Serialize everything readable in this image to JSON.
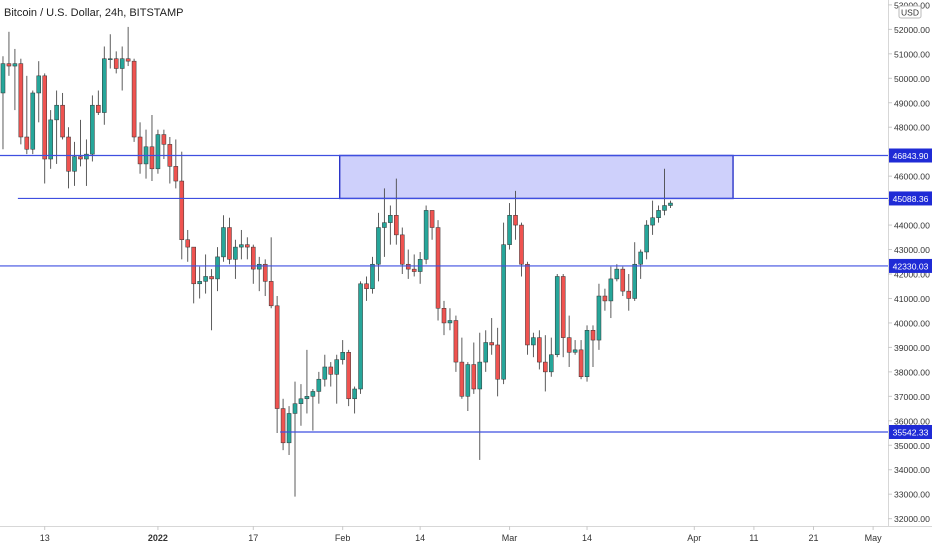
{
  "header": {
    "symbol_line": "Bitcoin / U.S. Dollar, 24h, BITSTAMP"
  },
  "price_scale": {
    "currency_badge": "USD"
  },
  "colors": {
    "up": "#26a69a",
    "down": "#ef5350",
    "candle_outline": "#333333",
    "hline": "#3f4fe0",
    "zone_fill": "#c5c8fa",
    "zone_border": "#2b35c8",
    "label_bg": "#1f2bd6",
    "axis_text": "#333333"
  },
  "chart_data": {
    "type": "candlestick",
    "x_axis_labels": [
      {
        "label": "13",
        "date": "2021-12-13"
      },
      {
        "label": "2022",
        "date": "2022-01-01"
      },
      {
        "label": "17",
        "date": "2022-01-17"
      },
      {
        "label": "Feb",
        "date": "2022-02-01"
      },
      {
        "label": "14",
        "date": "2022-02-14"
      },
      {
        "label": "Mar",
        "date": "2022-03-01"
      },
      {
        "label": "14",
        "date": "2022-03-14"
      },
      {
        "label": "Apr",
        "date": "2022-04-01"
      },
      {
        "label": "11",
        "date": "2022-04-11"
      },
      {
        "label": "21",
        "date": "2022-04-21"
      },
      {
        "label": "May",
        "date": "2022-05-01"
      }
    ],
    "y_axis_labels": [
      "53000.00",
      "52000.00",
      "51000.00",
      "50000.00",
      "49000.00",
      "48000.00",
      "47000.00",
      "46000.00",
      "45000.00",
      "44000.00",
      "43000.00",
      "42000.00",
      "41000.00",
      "40000.00",
      "39000.00",
      "38000.00",
      "37000.00",
      "36000.00",
      "35000.00",
      "34000.00",
      "33000.00",
      "32000.00"
    ],
    "ylim": [
      31700,
      53200
    ],
    "xlim": [
      "2021-12-06",
      "2022-05-04"
    ],
    "horizontal_lines": [
      {
        "price": 46843.9,
        "label": "46843.90",
        "from": "2021-12-06"
      },
      {
        "price": 45088.36,
        "label": "45088.36",
        "from": "2021-12-09"
      },
      {
        "price": 42330.03,
        "label": "42330.03",
        "from": "2021-12-06"
      },
      {
        "price": 35542.33,
        "label": "35542.33",
        "from": "2022-01-22"
      }
    ],
    "zone": {
      "from": "2022-02-01",
      "to": "2022-04-07",
      "low": 45088.36,
      "high": 46843.9
    },
    "candles": [
      {
        "date": "2021-12-06",
        "o": 49400,
        "h": 50900,
        "l": 47100,
        "c": 50600
      },
      {
        "date": "2021-12-07",
        "o": 50600,
        "h": 51900,
        "l": 50100,
        "c": 50500
      },
      {
        "date": "2021-12-08",
        "o": 50500,
        "h": 51200,
        "l": 48700,
        "c": 50600
      },
      {
        "date": "2021-12-09",
        "o": 50600,
        "h": 50800,
        "l": 47300,
        "c": 47600
      },
      {
        "date": "2021-12-10",
        "o": 47600,
        "h": 50100,
        "l": 46900,
        "c": 47100
      },
      {
        "date": "2021-12-11",
        "o": 47100,
        "h": 49500,
        "l": 46900,
        "c": 49400
      },
      {
        "date": "2021-12-12",
        "o": 49400,
        "h": 50700,
        "l": 48200,
        "c": 50100
      },
      {
        "date": "2021-12-13",
        "o": 50100,
        "h": 50200,
        "l": 45700,
        "c": 46700
      },
      {
        "date": "2021-12-14",
        "o": 46700,
        "h": 48700,
        "l": 46300,
        "c": 48300
      },
      {
        "date": "2021-12-15",
        "o": 48300,
        "h": 49500,
        "l": 46500,
        "c": 48900
      },
      {
        "date": "2021-12-16",
        "o": 48900,
        "h": 49400,
        "l": 47500,
        "c": 47600
      },
      {
        "date": "2021-12-17",
        "o": 47600,
        "h": 48000,
        "l": 45500,
        "c": 46200
      },
      {
        "date": "2021-12-18",
        "o": 46200,
        "h": 47400,
        "l": 45600,
        "c": 46800
      },
      {
        "date": "2021-12-19",
        "o": 46800,
        "h": 48300,
        "l": 46400,
        "c": 46700
      },
      {
        "date": "2021-12-20",
        "o": 46700,
        "h": 47500,
        "l": 45600,
        "c": 46900
      },
      {
        "date": "2021-12-21",
        "o": 46900,
        "h": 49300,
        "l": 46600,
        "c": 48900
      },
      {
        "date": "2021-12-22",
        "o": 48900,
        "h": 49500,
        "l": 48500,
        "c": 48600
      },
      {
        "date": "2021-12-23",
        "o": 48600,
        "h": 51300,
        "l": 48100,
        "c": 50800
      },
      {
        "date": "2021-12-24",
        "o": 50800,
        "h": 51800,
        "l": 50400,
        "c": 50800
      },
      {
        "date": "2021-12-25",
        "o": 50800,
        "h": 51100,
        "l": 50200,
        "c": 50400
      },
      {
        "date": "2021-12-26",
        "o": 50400,
        "h": 51300,
        "l": 49500,
        "c": 50800
      },
      {
        "date": "2021-12-27",
        "o": 50800,
        "h": 52100,
        "l": 50500,
        "c": 50700
      },
      {
        "date": "2021-12-28",
        "o": 50700,
        "h": 50800,
        "l": 47400,
        "c": 47600
      },
      {
        "date": "2021-12-29",
        "o": 47600,
        "h": 48200,
        "l": 46100,
        "c": 46500
      },
      {
        "date": "2021-12-30",
        "o": 46500,
        "h": 47900,
        "l": 45900,
        "c": 47200
      },
      {
        "date": "2021-12-31",
        "o": 47200,
        "h": 48500,
        "l": 45800,
        "c": 46300
      },
      {
        "date": "2022-01-01",
        "o": 46300,
        "h": 47900,
        "l": 46100,
        "c": 47700
      },
      {
        "date": "2022-01-02",
        "o": 47700,
        "h": 47900,
        "l": 46700,
        "c": 47300
      },
      {
        "date": "2022-01-03",
        "o": 47300,
        "h": 47600,
        "l": 45700,
        "c": 46400
      },
      {
        "date": "2022-01-04",
        "o": 46400,
        "h": 47500,
        "l": 45500,
        "c": 45800
      },
      {
        "date": "2022-01-05",
        "o": 45800,
        "h": 47000,
        "l": 42600,
        "c": 43400
      },
      {
        "date": "2022-01-06",
        "o": 43400,
        "h": 43800,
        "l": 42500,
        "c": 43100
      },
      {
        "date": "2022-01-07",
        "o": 43100,
        "h": 43100,
        "l": 40800,
        "c": 41600
      },
      {
        "date": "2022-01-08",
        "o": 41600,
        "h": 42300,
        "l": 41000,
        "c": 41700
      },
      {
        "date": "2022-01-09",
        "o": 41700,
        "h": 42800,
        "l": 41200,
        "c": 41900
      },
      {
        "date": "2022-01-10",
        "o": 41900,
        "h": 42200,
        "l": 39700,
        "c": 41800
      },
      {
        "date": "2022-01-11",
        "o": 41800,
        "h": 43100,
        "l": 41300,
        "c": 42700
      },
      {
        "date": "2022-01-12",
        "o": 42700,
        "h": 44400,
        "l": 42500,
        "c": 43900
      },
      {
        "date": "2022-01-13",
        "o": 43900,
        "h": 44300,
        "l": 42400,
        "c": 42600
      },
      {
        "date": "2022-01-14",
        "o": 42600,
        "h": 43400,
        "l": 41800,
        "c": 43100
      },
      {
        "date": "2022-01-15",
        "o": 43100,
        "h": 43800,
        "l": 42600,
        "c": 43200
      },
      {
        "date": "2022-01-16",
        "o": 43200,
        "h": 43500,
        "l": 42600,
        "c": 43100
      },
      {
        "date": "2022-01-17",
        "o": 43100,
        "h": 43200,
        "l": 41600,
        "c": 42200
      },
      {
        "date": "2022-01-18",
        "o": 42200,
        "h": 42700,
        "l": 41300,
        "c": 42400
      },
      {
        "date": "2022-01-19",
        "o": 42400,
        "h": 42600,
        "l": 41100,
        "c": 41700
      },
      {
        "date": "2022-01-20",
        "o": 41700,
        "h": 43500,
        "l": 40600,
        "c": 40700
      },
      {
        "date": "2022-01-21",
        "o": 40700,
        "h": 41100,
        "l": 35500,
        "c": 36500
      },
      {
        "date": "2022-01-22",
        "o": 36500,
        "h": 36900,
        "l": 34800,
        "c": 35100
      },
      {
        "date": "2022-01-23",
        "o": 35100,
        "h": 36600,
        "l": 34600,
        "c": 36300
      },
      {
        "date": "2022-01-24",
        "o": 36300,
        "h": 37600,
        "l": 32900,
        "c": 36700
      },
      {
        "date": "2022-01-25",
        "o": 36700,
        "h": 37500,
        "l": 35800,
        "c": 36900
      },
      {
        "date": "2022-01-26",
        "o": 36900,
        "h": 38900,
        "l": 36300,
        "c": 37000
      },
      {
        "date": "2022-01-27",
        "o": 37000,
        "h": 37300,
        "l": 35600,
        "c": 37200
      },
      {
        "date": "2022-01-28",
        "o": 37200,
        "h": 38000,
        "l": 36700,
        "c": 37700
      },
      {
        "date": "2022-01-29",
        "o": 37700,
        "h": 38700,
        "l": 37400,
        "c": 38200
      },
      {
        "date": "2022-01-30",
        "o": 38200,
        "h": 38400,
        "l": 37400,
        "c": 37900
      },
      {
        "date": "2022-01-31",
        "o": 37900,
        "h": 38700,
        "l": 36700,
        "c": 38500
      },
      {
        "date": "2022-02-01",
        "o": 38500,
        "h": 39300,
        "l": 38300,
        "c": 38800
      },
      {
        "date": "2022-02-02",
        "o": 38800,
        "h": 38900,
        "l": 36600,
        "c": 36900
      },
      {
        "date": "2022-02-03",
        "o": 36900,
        "h": 37400,
        "l": 36300,
        "c": 37300
      },
      {
        "date": "2022-02-04",
        "o": 37300,
        "h": 41700,
        "l": 37100,
        "c": 41600
      },
      {
        "date": "2022-02-05",
        "o": 41600,
        "h": 41900,
        "l": 40900,
        "c": 41400
      },
      {
        "date": "2022-02-06",
        "o": 41400,
        "h": 42700,
        "l": 41200,
        "c": 42400
      },
      {
        "date": "2022-02-07",
        "o": 42400,
        "h": 44500,
        "l": 41700,
        "c": 43900
      },
      {
        "date": "2022-02-08",
        "o": 43900,
        "h": 45500,
        "l": 42700,
        "c": 44100
      },
      {
        "date": "2022-02-09",
        "o": 44100,
        "h": 44800,
        "l": 43200,
        "c": 44400
      },
      {
        "date": "2022-02-10",
        "o": 44400,
        "h": 45900,
        "l": 43200,
        "c": 43600
      },
      {
        "date": "2022-02-11",
        "o": 43600,
        "h": 43900,
        "l": 42000,
        "c": 42400
      },
      {
        "date": "2022-02-12",
        "o": 42400,
        "h": 43000,
        "l": 41800,
        "c": 42200
      },
      {
        "date": "2022-02-13",
        "o": 42200,
        "h": 42800,
        "l": 41900,
        "c": 42100
      },
      {
        "date": "2022-02-14",
        "o": 42100,
        "h": 42900,
        "l": 41600,
        "c": 42600
      },
      {
        "date": "2022-02-15",
        "o": 42600,
        "h": 44800,
        "l": 42400,
        "c": 44600
      },
      {
        "date": "2022-02-16",
        "o": 44600,
        "h": 44600,
        "l": 43400,
        "c": 43900
      },
      {
        "date": "2022-02-17",
        "o": 43900,
        "h": 44200,
        "l": 40100,
        "c": 40600
      },
      {
        "date": "2022-02-18",
        "o": 40600,
        "h": 40900,
        "l": 39500,
        "c": 40000
      },
      {
        "date": "2022-02-19",
        "o": 40000,
        "h": 40600,
        "l": 39700,
        "c": 40100
      },
      {
        "date": "2022-02-20",
        "o": 40100,
        "h": 40300,
        "l": 38000,
        "c": 38400
      },
      {
        "date": "2022-02-21",
        "o": 38400,
        "h": 39400,
        "l": 36900,
        "c": 37000
      },
      {
        "date": "2022-02-22",
        "o": 37000,
        "h": 38400,
        "l": 36400,
        "c": 38300
      },
      {
        "date": "2022-02-23",
        "o": 38300,
        "h": 39200,
        "l": 37100,
        "c": 37300
      },
      {
        "date": "2022-02-24",
        "o": 37300,
        "h": 39600,
        "l": 34400,
        "c": 38400
      },
      {
        "date": "2022-02-25",
        "o": 38400,
        "h": 39700,
        "l": 38000,
        "c": 39200
      },
      {
        "date": "2022-02-26",
        "o": 39200,
        "h": 40200,
        "l": 38700,
        "c": 39100
      },
      {
        "date": "2022-02-27",
        "o": 39100,
        "h": 39800,
        "l": 37000,
        "c": 37700
      },
      {
        "date": "2022-02-28",
        "o": 37700,
        "h": 44100,
        "l": 37500,
        "c": 43200
      },
      {
        "date": "2022-03-01",
        "o": 43200,
        "h": 44900,
        "l": 43000,
        "c": 44400
      },
      {
        "date": "2022-03-02",
        "o": 44400,
        "h": 45400,
        "l": 43400,
        "c": 44000
      },
      {
        "date": "2022-03-03",
        "o": 44000,
        "h": 44100,
        "l": 41900,
        "c": 42400
      },
      {
        "date": "2022-03-04",
        "o": 42400,
        "h": 42500,
        "l": 38700,
        "c": 39100
      },
      {
        "date": "2022-03-05",
        "o": 39100,
        "h": 39600,
        "l": 38600,
        "c": 39400
      },
      {
        "date": "2022-03-06",
        "o": 39400,
        "h": 39700,
        "l": 38100,
        "c": 38400
      },
      {
        "date": "2022-03-07",
        "o": 38400,
        "h": 39500,
        "l": 37200,
        "c": 38000
      },
      {
        "date": "2022-03-08",
        "o": 38000,
        "h": 39400,
        "l": 37800,
        "c": 38700
      },
      {
        "date": "2022-03-09",
        "o": 38700,
        "h": 42000,
        "l": 38600,
        "c": 41900
      },
      {
        "date": "2022-03-10",
        "o": 41900,
        "h": 42000,
        "l": 38600,
        "c": 39400
      },
      {
        "date": "2022-03-11",
        "o": 39400,
        "h": 40300,
        "l": 38200,
        "c": 38800
      },
      {
        "date": "2022-03-12",
        "o": 38800,
        "h": 39300,
        "l": 38700,
        "c": 38900
      },
      {
        "date": "2022-03-13",
        "o": 38900,
        "h": 39300,
        "l": 37700,
        "c": 37800
      },
      {
        "date": "2022-03-14",
        "o": 37800,
        "h": 39900,
        "l": 37600,
        "c": 39700
      },
      {
        "date": "2022-03-15",
        "o": 39700,
        "h": 39900,
        "l": 38200,
        "c": 39300
      },
      {
        "date": "2022-03-16",
        "o": 39300,
        "h": 41600,
        "l": 38900,
        "c": 41100
      },
      {
        "date": "2022-03-17",
        "o": 41100,
        "h": 41400,
        "l": 40500,
        "c": 40900
      },
      {
        "date": "2022-03-18",
        "o": 40900,
        "h": 42300,
        "l": 40200,
        "c": 41800
      },
      {
        "date": "2022-03-19",
        "o": 41800,
        "h": 42400,
        "l": 41700,
        "c": 42200
      },
      {
        "date": "2022-03-20",
        "o": 42200,
        "h": 42300,
        "l": 41100,
        "c": 41300
      },
      {
        "date": "2022-03-21",
        "o": 41300,
        "h": 42000,
        "l": 40500,
        "c": 41000
      },
      {
        "date": "2022-03-22",
        "o": 41000,
        "h": 43300,
        "l": 40900,
        "c": 42400
      },
      {
        "date": "2022-03-23",
        "o": 42400,
        "h": 43000,
        "l": 41800,
        "c": 42900
      },
      {
        "date": "2022-03-24",
        "o": 42900,
        "h": 44200,
        "l": 42600,
        "c": 44000
      },
      {
        "date": "2022-03-25",
        "o": 44000,
        "h": 45000,
        "l": 43600,
        "c": 44300
      },
      {
        "date": "2022-03-26",
        "o": 44300,
        "h": 44800,
        "l": 44100,
        "c": 44600
      },
      {
        "date": "2022-03-27",
        "o": 44600,
        "h": 46300,
        "l": 44400,
        "c": 44800
      },
      {
        "date": "2022-03-28",
        "o": 44800,
        "h": 45000,
        "l": 44700,
        "c": 44900
      }
    ]
  }
}
